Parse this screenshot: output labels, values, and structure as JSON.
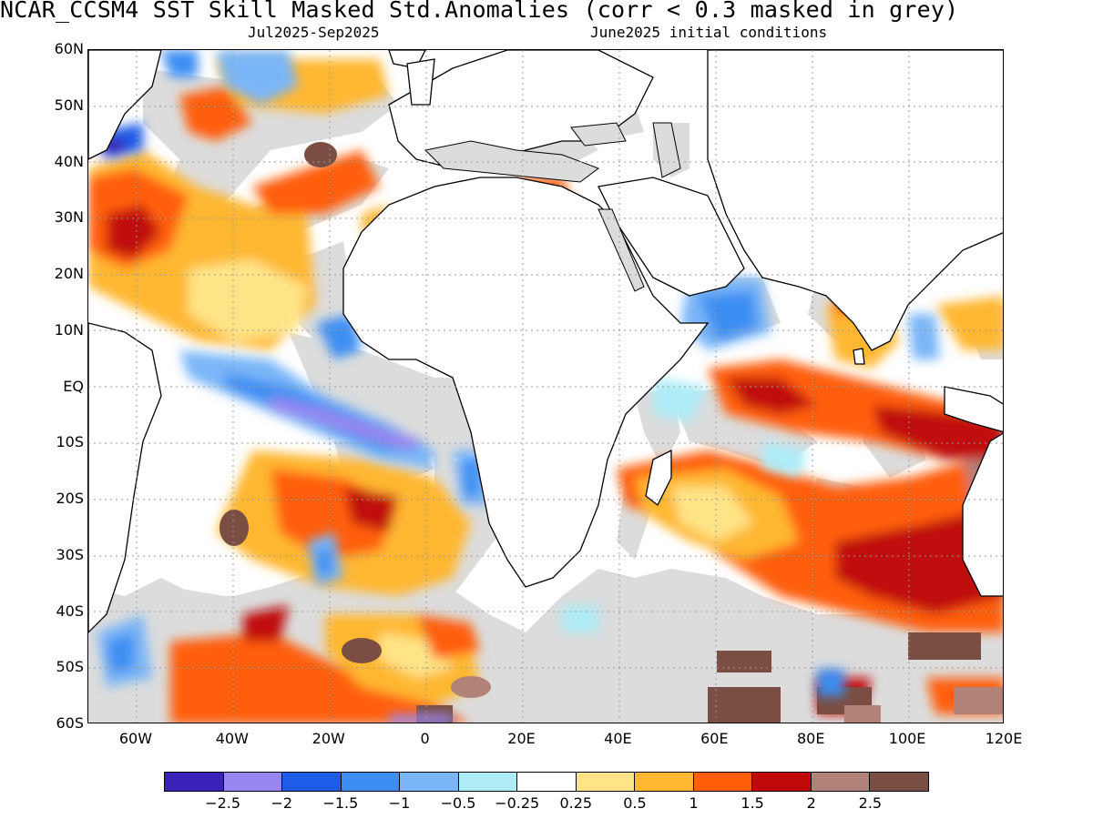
{
  "title": "NCAR_CCSM4  SST Skill Masked Std.Anomalies (corr < 0.3 masked in grey)",
  "subtitle_left": "Jul2025-Sep2025",
  "subtitle_right": "June2025 initial conditions",
  "lat_labels": [
    "60N",
    "50N",
    "40N",
    "30N",
    "20N",
    "10N",
    "EQ",
    "10S",
    "20S",
    "30S",
    "40S",
    "50S",
    "60S"
  ],
  "lon_labels": [
    "60W",
    "40W",
    "20W",
    "0",
    "20E",
    "40E",
    "60E",
    "80E",
    "100E",
    "120E"
  ],
  "colorbar": {
    "colors": [
      "#3a22b8",
      "#9a86f0",
      "#1e5be6",
      "#3c8ef2",
      "#7ab6f7",
      "#aeecf7",
      "#ffffff",
      "#ffe487",
      "#ffb732",
      "#ff5f0a",
      "#c00a0a",
      "#b08278",
      "#7a4e42"
    ],
    "labels": [
      "−2.5",
      "−2",
      "−1.5",
      "−1",
      "−0.5",
      "−0.25",
      "0.25",
      "0.5",
      "1",
      "1.5",
      "2",
      "2.5"
    ]
  },
  "colors": {
    "mask_grey": "#dcdcdc",
    "land": "#ffffff",
    "coastline": "#000000"
  }
}
